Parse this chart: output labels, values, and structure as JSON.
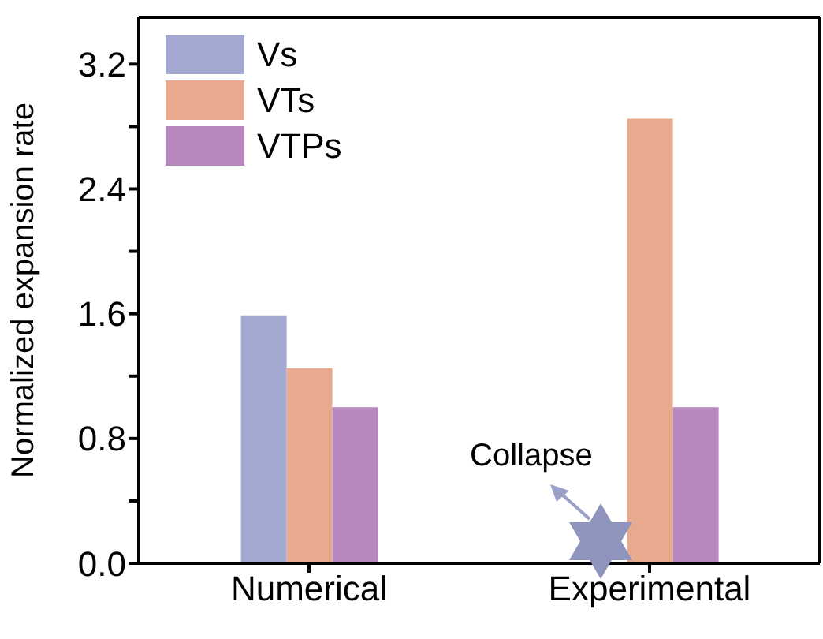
{
  "chart_data": {
    "type": "bar",
    "ylabel": "Normalized expansion rate",
    "categories": [
      "Numerical",
      "Experimental"
    ],
    "series": [
      {
        "name": "Vs",
        "color": "#a2a8cf",
        "values": [
          1.59,
          null
        ]
      },
      {
        "name": "VTs",
        "color": "#e8aa8f",
        "values": [
          1.25,
          2.85
        ]
      },
      {
        "name": "VTPs",
        "color": "#b887bd",
        "values": [
          1.0,
          1.0
        ]
      }
    ],
    "ylim": [
      0,
      3.5
    ],
    "yticks": [
      {
        "value": 0,
        "label": "0.0"
      },
      {
        "value": 0.4,
        "label": null
      },
      0.8,
      {
        "value": 1.2,
        "label": null
      },
      1.6,
      {
        "value": 2.0,
        "label": null
      },
      2.4,
      {
        "value": 2.8,
        "label": null
      },
      3.2
    ],
    "annotations": [
      "Collapse"
    ],
    "legend": "top left",
    "grid": false
  }
}
